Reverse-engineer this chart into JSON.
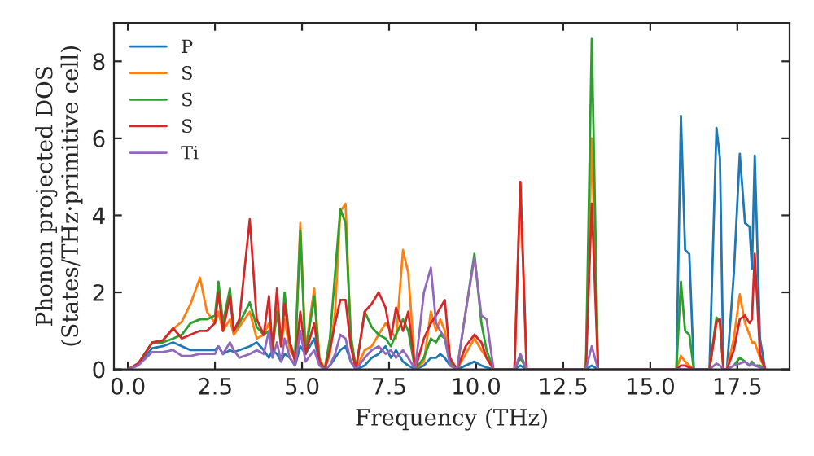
{
  "chart_data": {
    "type": "line",
    "xlabel": "Frequency (THz)",
    "ylabel": "Phonon projected DOS\n(States/THz·primitive cell)",
    "x": [
      0.0,
      0.3,
      0.7,
      1.0,
      1.3,
      1.55,
      1.8,
      2.07,
      2.27,
      2.5,
      2.6,
      2.73,
      2.93,
      3.04,
      3.2,
      3.5,
      3.7,
      3.9,
      4.05,
      4.15,
      4.28,
      4.4,
      4.5,
      4.65,
      4.8,
      4.95,
      5.1,
      5.35,
      5.5,
      5.65,
      5.8,
      5.95,
      6.1,
      6.25,
      6.4,
      6.55,
      6.8,
      7.0,
      7.2,
      7.4,
      7.55,
      7.7,
      7.9,
      8.05,
      8.25,
      8.5,
      8.7,
      8.85,
      8.97,
      9.1,
      9.25,
      9.45,
      9.7,
      9.95,
      10.15,
      10.3,
      10.5,
      11.1,
      11.27,
      11.45,
      13.15,
      13.32,
      13.5,
      15.75,
      15.88,
      16.0,
      16.12,
      16.25,
      16.7,
      16.9,
      17.0,
      17.1,
      17.2,
      17.4,
      17.57,
      17.72,
      17.85,
      17.92,
      18.0,
      18.15,
      18.3
    ],
    "series": [
      {
        "name": "P",
        "color": "#1f77b4",
        "values": [
          0,
          0.15,
          0.55,
          0.6,
          0.7,
          0.6,
          0.5,
          0.5,
          0.5,
          0.5,
          0.6,
          0.4,
          0.5,
          0.45,
          0.5,
          0.6,
          0.7,
          0.5,
          0.3,
          0.5,
          0.4,
          0.2,
          0.4,
          0.3,
          0.1,
          0.6,
          0.4,
          0.8,
          0.2,
          0,
          0.1,
          0.3,
          0.5,
          0.6,
          0.2,
          0,
          0.1,
          0.3,
          0.4,
          0.6,
          0.3,
          0.5,
          0.2,
          0.1,
          0,
          0.1,
          0.3,
          0.3,
          0.4,
          0.3,
          0.1,
          0,
          0.1,
          0.2,
          0.1,
          0.05,
          0,
          0,
          0.1,
          0,
          0,
          0.1,
          0,
          0,
          6.58,
          3.1,
          3.0,
          0,
          0,
          6.27,
          5.48,
          0,
          0,
          2.5,
          5.6,
          3.8,
          3.7,
          2.6,
          5.55,
          0.8,
          0
        ]
      },
      {
        "name": "S",
        "color": "#ff7f0e",
        "values": [
          0,
          0.15,
          0.7,
          0.75,
          1.05,
          1.24,
          1.7,
          2.38,
          1.5,
          1.2,
          1.5,
          1.0,
          1.3,
          0.9,
          1.1,
          1.5,
          0.8,
          0.9,
          1.2,
          0.5,
          1.6,
          0.6,
          1.3,
          0.5,
          0.3,
          3.8,
          0.5,
          2.1,
          0.3,
          0,
          0.4,
          1.5,
          4.1,
          4.3,
          0.8,
          0,
          0.5,
          0.6,
          0.9,
          1.2,
          1.0,
          0.8,
          3.1,
          2.5,
          0,
          0.2,
          1.5,
          1.0,
          1.3,
          1.0,
          0.2,
          0,
          0.4,
          0.8,
          0.5,
          0.3,
          0,
          0,
          4.8,
          0,
          0,
          6.0,
          0,
          0,
          0.35,
          0.2,
          0.1,
          0,
          0,
          1.2,
          1.3,
          0,
          0,
          0.8,
          1.95,
          1.2,
          0.9,
          0.7,
          0.7,
          0.3,
          0
        ]
      },
      {
        "name": "S",
        "color": "#2ca02c",
        "values": [
          0,
          0.15,
          0.7,
          0.7,
          0.8,
          0.9,
          1.2,
          1.3,
          1.3,
          1.4,
          2.28,
          1.2,
          2.1,
          1.0,
          1.2,
          1.74,
          1.1,
          0.9,
          1.0,
          0.5,
          1.5,
          0.6,
          2.0,
          0.7,
          0.3,
          3.6,
          0.4,
          1.9,
          0.2,
          0,
          0.8,
          2.5,
          4.16,
          3.8,
          0.9,
          0,
          1.5,
          1.1,
          0.9,
          0.8,
          0.6,
          0.9,
          1.3,
          1.0,
          0,
          0.3,
          0.8,
          0.7,
          0.9,
          0.8,
          0.2,
          0,
          1.5,
          3.0,
          1.2,
          0.5,
          0,
          0,
          0.3,
          0,
          0,
          8.58,
          0,
          0,
          2.28,
          1.0,
          0.9,
          0,
          0,
          1.35,
          1.2,
          0,
          0,
          0.1,
          0.3,
          0.2,
          0.1,
          0.2,
          0.1,
          0.1,
          0
        ]
      },
      {
        "name": "S",
        "color": "#d62728",
        "values": [
          0,
          0.15,
          0.7,
          0.75,
          1.07,
          0.8,
          0.9,
          1.0,
          1.0,
          1.2,
          2.0,
          1.0,
          1.9,
          1.0,
          1.3,
          3.9,
          1.3,
          0.9,
          1.9,
          0.5,
          2.1,
          0.6,
          1.7,
          0.7,
          0.2,
          1.5,
          0.4,
          1.2,
          0.2,
          0,
          0.5,
          1.2,
          1.8,
          1.8,
          0.6,
          0,
          1.5,
          1.7,
          2.0,
          1.6,
          0.8,
          1.6,
          1.0,
          1.5,
          0,
          0.8,
          1.2,
          1.4,
          1.6,
          1.8,
          0.3,
          0,
          0.6,
          0.9,
          0.7,
          0.3,
          0,
          0,
          4.87,
          0,
          0,
          4.3,
          0,
          0,
          0.1,
          0.1,
          0.05,
          0,
          0,
          1.25,
          1.3,
          0,
          0,
          0.5,
          1.3,
          1.4,
          1.2,
          1.3,
          3.0,
          0.4,
          0
        ]
      },
      {
        "name": "Ti",
        "color": "#9467bd",
        "values": [
          0,
          0.1,
          0.45,
          0.45,
          0.5,
          0.35,
          0.35,
          0.4,
          0.4,
          0.4,
          0.6,
          0.4,
          0.7,
          0.5,
          0.3,
          0.4,
          0.5,
          0.4,
          1.0,
          0.3,
          0.7,
          0.2,
          0.8,
          0.3,
          0.1,
          1.0,
          0.2,
          0.5,
          0.1,
          0,
          0.1,
          0.4,
          0.9,
          0.8,
          0.2,
          0,
          0.3,
          0.5,
          0.6,
          0.4,
          0.5,
          0.3,
          0.5,
          0.3,
          0,
          2.0,
          2.64,
          1.2,
          1.0,
          0.8,
          0.1,
          0,
          1.5,
          2.9,
          1.4,
          1.3,
          0,
          0,
          0.4,
          0,
          0,
          0.6,
          0,
          0,
          null,
          null,
          null,
          null,
          0,
          0.15,
          0.1,
          0,
          0,
          0.1,
          0.15,
          0.2,
          0.1,
          0.15,
          0.1,
          0.05,
          0
        ]
      }
    ],
    "xlim": [
      -0.4,
      19.0
    ],
    "ylim": [
      0,
      9
    ],
    "xticks": [
      {
        "value": 0,
        "label": "0.0"
      },
      2.5,
      {
        "value": 5,
        "label": "5.0"
      },
      7.5,
      {
        "value": 10,
        "label": "10.0"
      },
      12.5,
      {
        "value": 15,
        "label": "15.0"
      },
      17.5
    ],
    "yticks": [
      0,
      2,
      4,
      6,
      8
    ],
    "legend": "top left",
    "grid": false,
    "marker": "none",
    "line_style": "solid"
  }
}
